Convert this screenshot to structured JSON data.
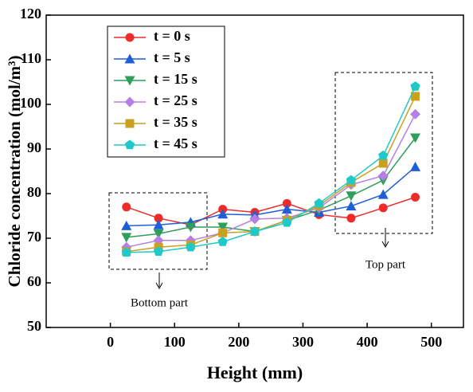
{
  "chart_data": {
    "type": "line",
    "x_label": "Height (mm)",
    "y_label": "Chloride concentration (mol/m³)",
    "x": [
      25,
      75,
      125,
      175,
      225,
      275,
      325,
      375,
      425,
      475
    ],
    "series": [
      {
        "name": "t = 0 s",
        "color": "#ee2b2b",
        "marker": "circle",
        "values": [
          77,
          74.5,
          73,
          76.5,
          75.8,
          77.8,
          75.3,
          74.5,
          76.8,
          79.2
        ]
      },
      {
        "name": "t = 5 s",
        "color": "#1f5fd6",
        "marker": "triangle-up",
        "values": [
          72.8,
          73.0,
          73.6,
          75.4,
          75.2,
          76.5,
          75.8,
          77.2,
          79.8,
          86.0
        ]
      },
      {
        "name": "t = 15 s",
        "color": "#2e9e5b",
        "marker": "triangle-down",
        "values": [
          70.2,
          71,
          72.5,
          72.5,
          71.5,
          74,
          76.3,
          79.5,
          83,
          92.5
        ]
      },
      {
        "name": "t = 25 s",
        "color": "#b67fe3",
        "marker": "diamond",
        "values": [
          68,
          69.5,
          69.5,
          71.2,
          74.3,
          74.5,
          76.8,
          82,
          84,
          97.8
        ]
      },
      {
        "name": "t = 35 s",
        "color": "#c9a020",
        "marker": "square",
        "values": [
          67,
          68,
          68.5,
          71.2,
          71.5,
          74,
          77.3,
          82.5,
          86.8,
          101.8
        ]
      },
      {
        "name": "t = 45 s",
        "color": "#1fc9c9",
        "marker": "pentagon",
        "values": [
          66.8,
          67,
          68,
          69.2,
          71.5,
          73.5,
          77.8,
          83,
          88.5,
          104
        ]
      }
    ],
    "xlim": [
      -100,
      550
    ],
    "xticks": [
      0,
      100,
      200,
      300,
      400,
      500
    ],
    "ylim": [
      50,
      120
    ],
    "yticks": [
      50,
      60,
      70,
      80,
      90,
      100,
      110,
      120
    ],
    "legend": "upper left",
    "annotations": [
      "Bottom part",
      "Top part"
    ]
  }
}
